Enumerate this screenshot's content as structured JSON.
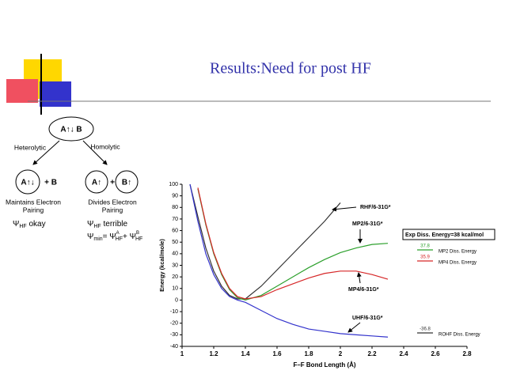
{
  "title": "Results:Need for post HF",
  "diagram": {
    "top": "A↑↓ B",
    "left_arrow": "Heterolytic",
    "right_arrow": "Homolytic",
    "left_ion": "A↑↓",
    "left_plus": "+ B",
    "right_a": "A↑",
    "right_plus": "+",
    "right_b": "B↑",
    "left_desc": [
      "Maintains Electron",
      "Pairing"
    ],
    "right_desc": [
      "Divides Electron",
      "Pairing"
    ],
    "left_psi": {
      "psi": "Ψ",
      "sub": "HF",
      "text": " okay"
    },
    "right_psi": {
      "psi": "Ψ",
      "sub": "HF",
      "text": " terrible"
    },
    "min_psi": {
      "psi": "Ψ",
      "sub": "min",
      "eq": "= Ψ",
      "supA": "A",
      "subA": "HF",
      "plus": "+ Ψ",
      "supB": "B",
      "subB": "HF"
    }
  },
  "chart_data": {
    "type": "line",
    "x_label": "F–F Bond Length (Å)",
    "y_label": "Energy (kcal/mole)",
    "xlim": [
      1,
      2.8
    ],
    "xticks": [
      1,
      1.2,
      1.4,
      1.6,
      1.8,
      2,
      2.2,
      2.4,
      2.6,
      2.8
    ],
    "ylim": [
      -40,
      100
    ],
    "yticks": [
      -40,
      -30,
      -20,
      -10,
      0,
      10,
      20,
      30,
      40,
      50,
      60,
      70,
      80,
      90,
      100
    ],
    "x": [
      1.05,
      1.1,
      1.15,
      1.2,
      1.25,
      1.3,
      1.35,
      1.4,
      1.5,
      1.6,
      1.7,
      1.8,
      1.9,
      2.0,
      2.1,
      2.2,
      2.3
    ],
    "series": [
      {
        "name": "RHF/6-31G*",
        "color": "#333333",
        "values": [
          100,
          72,
          45,
          25,
          12,
          4,
          1,
          1,
          12,
          26,
          40,
          54,
          68,
          84,
          null,
          null,
          null
        ]
      },
      {
        "name": "MP2/6-31G*",
        "color": "#2ca02c",
        "values": [
          null,
          96,
          65,
          40,
          22,
          9,
          2,
          0,
          4,
          12,
          20,
          28,
          35,
          41,
          45,
          48,
          49
        ]
      },
      {
        "name": "MP4/6-31G*",
        "color": "#d62728",
        "values": [
          null,
          97,
          66,
          41,
          23,
          10,
          3,
          1,
          3,
          9,
          14,
          19,
          23,
          25,
          25,
          22,
          18
        ]
      },
      {
        "name": "UHF/6-31G*",
        "color": "#3333cc",
        "values": [
          100,
          68,
          40,
          22,
          10,
          3,
          0,
          -2,
          -9,
          -16,
          -21,
          -25,
          -27,
          -29,
          -30,
          -31,
          -32
        ]
      }
    ],
    "legend_title": "Exp Diss. Energy=38 kcal/mol",
    "legend": [
      {
        "value": "37.8",
        "label": "MP2 Diss. Energy",
        "color": "#2ca02c"
      },
      {
        "value": "35.9",
        "label": "MP4 Diss. Energy",
        "color": "#d62728"
      },
      {
        "value": "-36.8",
        "label": "ROHF Diss. Energy",
        "color": "#333333"
      }
    ]
  }
}
